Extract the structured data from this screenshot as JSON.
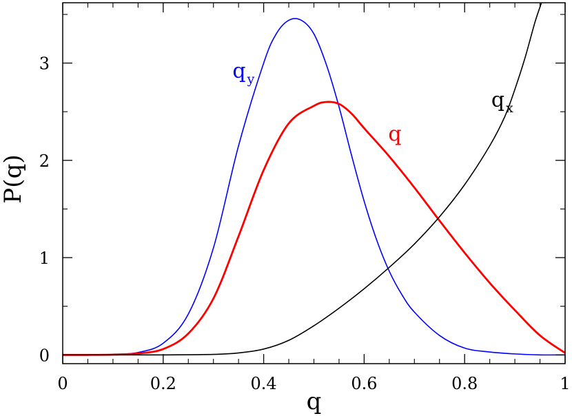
{
  "chart_data": {
    "type": "line",
    "xlabel": "q",
    "ylabel": "P(q)",
    "xlim": [
      0,
      1
    ],
    "ylim": [
      -0.09,
      3.62
    ],
    "xticks": [
      0,
      0.2,
      0.4,
      0.6,
      0.8,
      1
    ],
    "xtick_labels": [
      "0",
      "0.2",
      "0.4",
      "0.6",
      "0.8",
      "1"
    ],
    "yticks": [
      0,
      1,
      2,
      3
    ],
    "ytick_labels": [
      "0",
      "1",
      "2",
      "3"
    ],
    "grid": false,
    "series": [
      {
        "name": "q_y",
        "label_main": "q",
        "label_sub": "y",
        "label_pos": [
          0.338,
          2.85
        ],
        "color": "#0000ff",
        "x": [
          0.0,
          0.05,
          0.1,
          0.15,
          0.2,
          0.25,
          0.3,
          0.35,
          0.4,
          0.425,
          0.45,
          0.475,
          0.5,
          0.525,
          0.55,
          0.575,
          0.6,
          0.625,
          0.65,
          0.675,
          0.7,
          0.75,
          0.8,
          0.85,
          0.9,
          0.95,
          1.0
        ],
        "y": [
          0.0,
          0.0,
          0.005,
          0.025,
          0.12,
          0.42,
          1.1,
          2.15,
          3.0,
          3.3,
          3.44,
          3.44,
          3.3,
          2.98,
          2.55,
          2.05,
          1.58,
          1.18,
          0.86,
          0.62,
          0.44,
          0.2,
          0.07,
          0.03,
          0.01,
          0.0,
          0.0
        ]
      },
      {
        "name": "q",
        "label_main": "q",
        "label_sub": "",
        "label_pos": [
          0.648,
          2.2
        ],
        "color": "#ff0000",
        "x": [
          0.0,
          0.05,
          0.1,
          0.15,
          0.2,
          0.25,
          0.3,
          0.35,
          0.4,
          0.45,
          0.5,
          0.525,
          0.55,
          0.575,
          0.6,
          0.65,
          0.7,
          0.75,
          0.8,
          0.85,
          0.9,
          0.95,
          1.0
        ],
        "y": [
          0.0,
          0.0,
          0.003,
          0.015,
          0.06,
          0.22,
          0.58,
          1.22,
          1.9,
          2.38,
          2.56,
          2.6,
          2.58,
          2.48,
          2.33,
          2.04,
          1.72,
          1.38,
          1.05,
          0.74,
          0.46,
          0.2,
          0.02
        ]
      },
      {
        "name": "q_x",
        "label_main": "q",
        "label_sub": "x",
        "label_pos": [
          0.853,
          2.55
        ],
        "color": "#000000",
        "x": [
          0.0,
          0.1,
          0.2,
          0.3,
          0.35,
          0.4,
          0.45,
          0.5,
          0.55,
          0.6,
          0.65,
          0.7,
          0.75,
          0.8,
          0.85,
          0.88,
          0.9,
          0.92,
          0.94,
          0.953
        ],
        "y": [
          0.0,
          0.0,
          0.0,
          0.005,
          0.02,
          0.06,
          0.15,
          0.3,
          0.48,
          0.68,
          0.9,
          1.14,
          1.42,
          1.75,
          2.15,
          2.45,
          2.73,
          3.05,
          3.42,
          3.62
        ]
      }
    ]
  }
}
